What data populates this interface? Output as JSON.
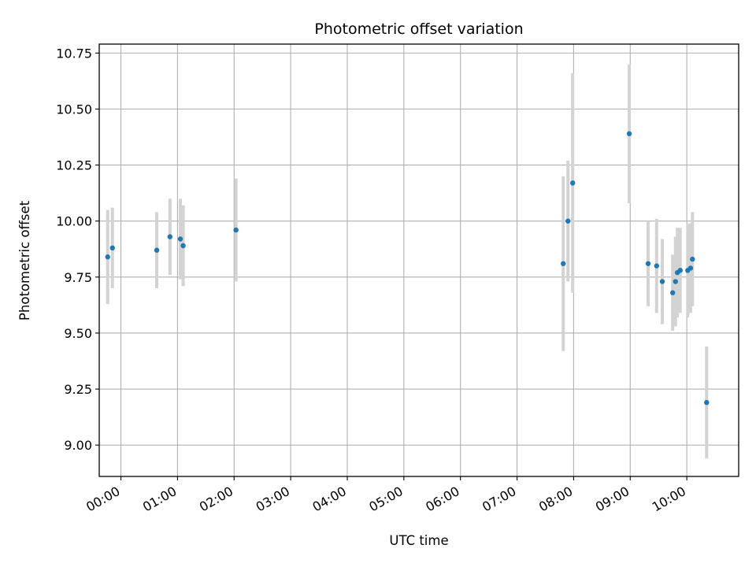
{
  "chart_data": {
    "type": "scatter",
    "title": "Photometric offset variation",
    "xlabel": "UTC time",
    "ylabel": "Photometric offset",
    "x_axis_kind": "time",
    "xlim": [
      "-00:23",
      "10:55"
    ],
    "ylim": [
      8.86,
      10.79
    ],
    "x_ticks": [
      "00:00",
      "01:00",
      "02:00",
      "03:00",
      "04:00",
      "05:00",
      "06:00",
      "07:00",
      "08:00",
      "09:00",
      "10:00"
    ],
    "y_ticks": [
      9.0,
      9.25,
      9.5,
      9.75,
      10.0,
      10.25,
      10.5,
      10.75
    ],
    "y_tick_labels": [
      "9.00",
      "9.25",
      "9.50",
      "9.75",
      "10.00",
      "10.25",
      "10.50",
      "10.75"
    ],
    "grid": true,
    "legend": "none",
    "errorbar_color": "#d3d3d3",
    "marker_color": "#1f77b4",
    "points": [
      {
        "t": "-00:14",
        "y": 9.84,
        "err": 0.21
      },
      {
        "t": "-00:09",
        "y": 9.88,
        "err": 0.18
      },
      {
        "t": "00:38",
        "y": 9.87,
        "err": 0.17
      },
      {
        "t": "00:52",
        "y": 9.93,
        "err": 0.17
      },
      {
        "t": "01:03",
        "y": 9.92,
        "err": 0.18
      },
      {
        "t": "01:06",
        "y": 9.89,
        "err": 0.18
      },
      {
        "t": "02:02",
        "y": 9.96,
        "err": 0.23
      },
      {
        "t": "07:49",
        "y": 9.81,
        "err": 0.39
      },
      {
        "t": "07:54",
        "y": 10.0,
        "err": 0.27
      },
      {
        "t": "07:59",
        "y": 10.17,
        "err": 0.49
      },
      {
        "t": "08:59",
        "y": 10.39,
        "err": 0.31
      },
      {
        "t": "09:19",
        "y": 9.81,
        "err": 0.19
      },
      {
        "t": "09:28",
        "y": 9.8,
        "err": 0.21
      },
      {
        "t": "09:34",
        "y": 9.73,
        "err": 0.19
      },
      {
        "t": "09:45",
        "y": 9.68,
        "err": 0.17
      },
      {
        "t": "09:48",
        "y": 9.73,
        "err": 0.2
      },
      {
        "t": "09:50",
        "y": 9.77,
        "err": 0.2
      },
      {
        "t": "09:53",
        "y": 9.78,
        "err": 0.19
      },
      {
        "t": "10:01",
        "y": 9.78,
        "err": 0.21
      },
      {
        "t": "10:04",
        "y": 9.79,
        "err": 0.2
      },
      {
        "t": "10:06",
        "y": 9.83,
        "err": 0.21
      },
      {
        "t": "10:21",
        "y": 9.19,
        "err": 0.25
      }
    ]
  }
}
